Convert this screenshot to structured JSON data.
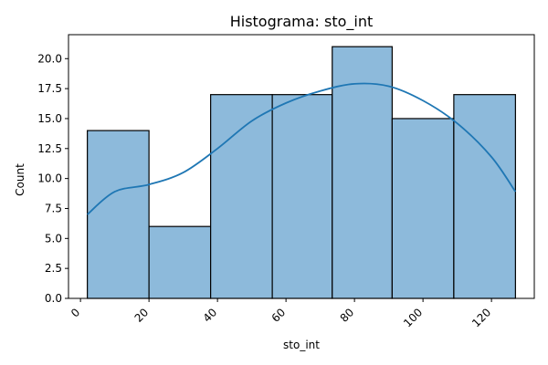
{
  "chart_data": {
    "type": "bar",
    "title": "Histograma: sto_int",
    "xlabel": "sto_int",
    "ylabel": "Count",
    "bins": [
      {
        "x0": 2,
        "x1": 20,
        "count": 14
      },
      {
        "x0": 20,
        "x1": 38,
        "count": 6
      },
      {
        "x0": 38,
        "x1": 56,
        "count": 17
      },
      {
        "x0": 56,
        "x1": 73.5,
        "count": 17
      },
      {
        "x0": 73.5,
        "x1": 91,
        "count": 21
      },
      {
        "x0": 91,
        "x1": 109,
        "count": 15
      },
      {
        "x0": 109,
        "x1": 127,
        "count": 17
      }
    ],
    "kde": {
      "x": [
        2,
        10,
        20,
        30,
        40,
        50,
        60,
        70,
        80,
        90,
        100,
        110,
        120,
        127
      ],
      "y": [
        7.0,
        8.9,
        9.5,
        10.5,
        12.5,
        14.8,
        16.3,
        17.3,
        17.9,
        17.7,
        16.5,
        14.6,
        11.8,
        8.9
      ]
    },
    "xlim": [
      -3.5,
      132.5
    ],
    "ylim": [
      0,
      22
    ],
    "xticks": [
      0,
      20,
      40,
      60,
      80,
      100,
      120
    ],
    "xtick_labels": [
      "0",
      "20",
      "40",
      "60",
      "80",
      "100",
      "120"
    ],
    "yticks": [
      0,
      2.5,
      5,
      7.5,
      10,
      12.5,
      15,
      17.5,
      20
    ],
    "ytick_labels": [
      "0.0",
      "2.5",
      "5.0",
      "7.5",
      "10.0",
      "12.5",
      "15.0",
      "17.5",
      "20.0"
    ],
    "grid": false,
    "colors": {
      "bar_fill": "#8dbadb",
      "bar_edge": "#000000",
      "kde_line": "#1f77b4"
    }
  }
}
